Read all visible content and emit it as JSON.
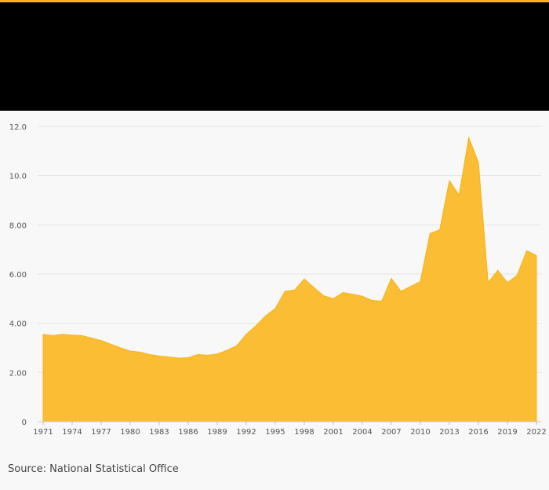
{
  "colors": {
    "accent": "#f4b41a",
    "area_fill": "#fbbd33",
    "area_stroke": "#f4b41a",
    "header_band": "#000000",
    "background": "#f8f8f8",
    "grid": "#e3e3e3",
    "tick_text": "#555555"
  },
  "source": "Source: National Statistical Office",
  "chart_data": {
    "type": "area",
    "title": "",
    "xlabel": "",
    "ylabel": "",
    "xlim": [
      1971,
      2022
    ],
    "ylim": [
      0,
      12
    ],
    "grid": true,
    "yticks": [
      0,
      2,
      4,
      6,
      8,
      10,
      12
    ],
    "ytick_labels": [
      "0",
      "2.00",
      "4.00",
      "6.00",
      "8.00",
      "10.0",
      "12.0"
    ],
    "xticks": [
      1971,
      1974,
      1977,
      1980,
      1983,
      1986,
      1989,
      1992,
      1995,
      1998,
      2001,
      2004,
      2007,
      2010,
      2013,
      2016,
      2019,
      2022
    ],
    "xtick_labels": [
      "1971",
      "1974",
      "1977",
      "1980",
      "1983",
      "1986",
      "1989",
      "1992",
      "1995",
      "1998",
      "2001",
      "2004",
      "2007",
      "2010",
      "2013",
      "2016",
      "2019",
      "2022"
    ],
    "series": [
      {
        "x": [
          1971,
          1972,
          1973,
          1974,
          1975,
          1976,
          1977,
          1978,
          1979,
          1980,
          1981,
          1982,
          1983,
          1984,
          1985,
          1986,
          1987,
          1988,
          1989,
          1990,
          1991,
          1992,
          1993,
          1994,
          1995,
          1996,
          1997,
          1998,
          1999,
          2000,
          2001,
          2002,
          2003,
          2004,
          2005,
          2006,
          2007,
          2008,
          2009,
          2010,
          2011,
          2012,
          2013,
          2014,
          2015,
          2016,
          2017,
          2018,
          2019,
          2020,
          2021,
          2022
        ],
        "values": [
          3.55,
          3.5,
          3.55,
          3.52,
          3.5,
          3.4,
          3.3,
          3.15,
          3.0,
          2.87,
          2.83,
          2.73,
          2.67,
          2.63,
          2.58,
          2.6,
          2.73,
          2.7,
          2.75,
          2.9,
          3.08,
          3.55,
          3.9,
          4.3,
          4.6,
          5.3,
          5.35,
          5.8,
          5.45,
          5.12,
          5.0,
          5.25,
          5.18,
          5.1,
          4.93,
          4.9,
          5.82,
          5.3,
          5.5,
          5.7,
          7.65,
          7.8,
          9.8,
          9.2,
          11.55,
          10.55,
          5.65,
          6.15,
          5.65,
          5.95,
          6.95,
          6.75
        ]
      }
    ]
  }
}
